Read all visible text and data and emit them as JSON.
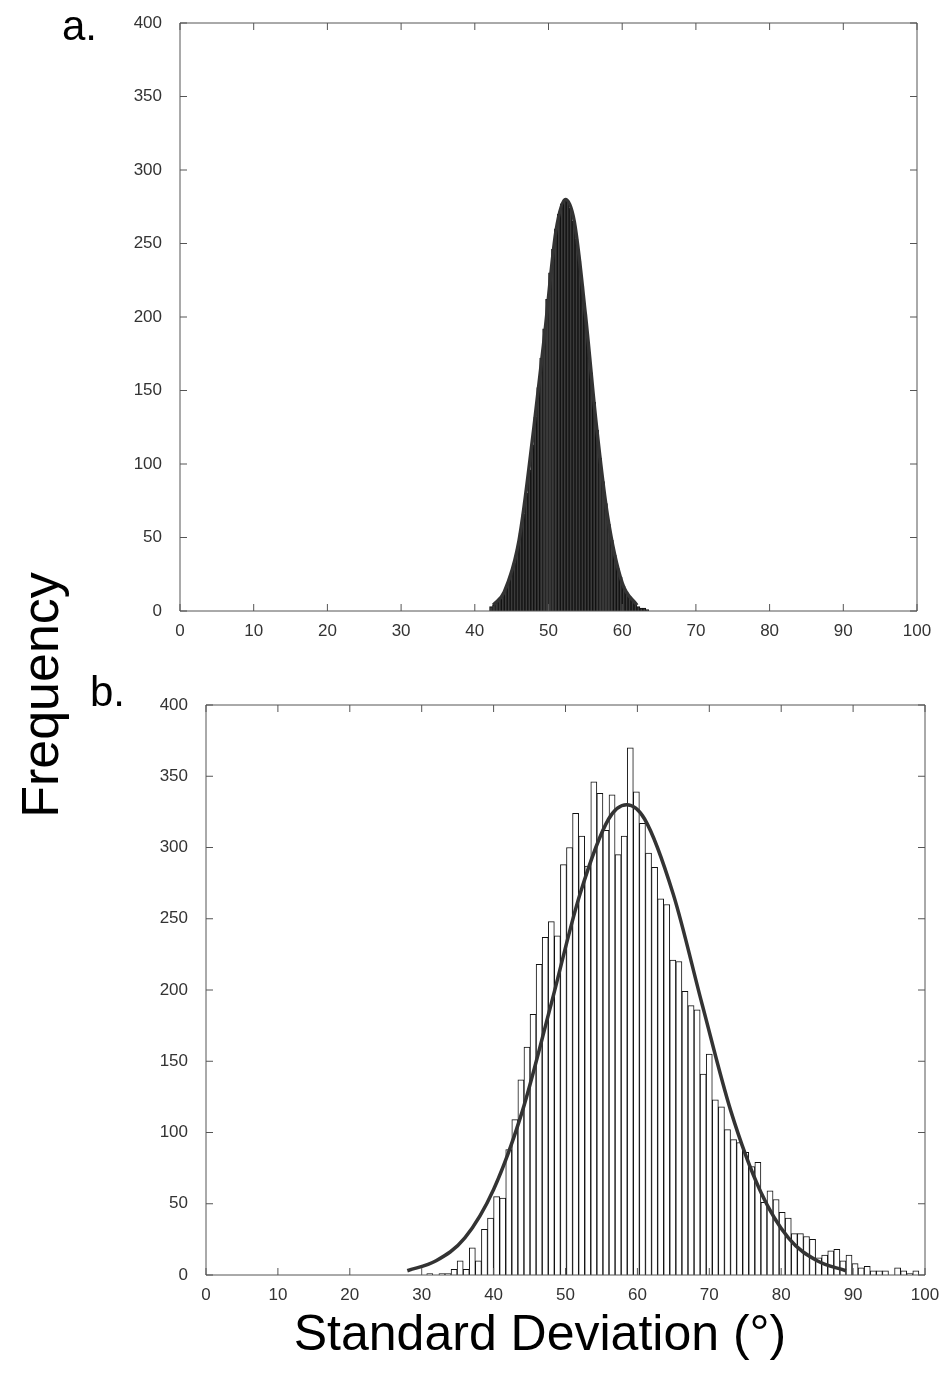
{
  "chart_data": [
    {
      "type": "histogram",
      "title": "a.",
      "ylabel": "Frequency",
      "color": "#3a3a3a",
      "bins": [
        42.0,
        42.4,
        42.8,
        43.2,
        43.6,
        44.0,
        44.4,
        44.8,
        45.2,
        45.6,
        46.0,
        46.4,
        46.8,
        47.2,
        47.6,
        48.0,
        48.4,
        48.8,
        49.2,
        49.6,
        50.0,
        50.4,
        50.8,
        51.2,
        51.6,
        52.0,
        52.4,
        52.8,
        53.2,
        53.6,
        54.0,
        54.4,
        54.8,
        55.2,
        55.6,
        56.0,
        56.4,
        56.8,
        57.2,
        57.6,
        58.0,
        58.4,
        58.8,
        59.2,
        59.6,
        60.0,
        60.4,
        60.8,
        61.2,
        61.6,
        62.0,
        62.4,
        62.8,
        63.2,
        63.6
      ],
      "values": [
        3,
        4,
        6,
        8,
        11,
        15,
        20,
        26,
        33,
        42,
        53,
        66,
        80,
        96,
        113,
        132,
        152,
        172,
        192,
        212,
        230,
        246,
        260,
        270,
        277,
        280,
        279,
        274,
        265,
        253,
        238,
        221,
        202,
        182,
        162,
        142,
        123,
        104,
        88,
        73,
        59,
        48,
        38,
        29,
        23,
        17,
        13,
        10,
        7,
        5,
        3,
        2,
        2,
        1
      ],
      "series": [
        {
          "type": "line",
          "color": "#333333",
          "x": [
            42.5,
            44,
            46,
            48,
            49.5,
            51,
            52.3,
            53.5,
            55,
            56.5,
            58,
            60,
            62
          ],
          "values": [
            4,
            13,
            48,
            124,
            189,
            258,
            280,
            265,
            202,
            126,
            65,
            19,
            4
          ]
        }
      ],
      "xlim": [
        0,
        100
      ],
      "ylim": [
        0,
        400
      ],
      "xticks": [
        0,
        10,
        20,
        30,
        40,
        50,
        60,
        70,
        80,
        90,
        100
      ],
      "yticks": [
        0,
        50,
        100,
        150,
        200,
        250,
        300,
        350,
        400
      ]
    },
    {
      "type": "histogram",
      "title": "b.",
      "xlabel": "Standard Deviation (°)",
      "color": "#ffffff",
      "bins": [
        30.7,
        31.55,
        32.39,
        33.24,
        34.08,
        34.93,
        35.77,
        36.62,
        37.46,
        38.31,
        39.15,
        40.0,
        40.84,
        41.69,
        42.53,
        43.38,
        44.22,
        45.07,
        45.91,
        46.76,
        47.6,
        48.45,
        49.29,
        50.14,
        50.98,
        51.83,
        52.67,
        53.52,
        54.36,
        55.21,
        56.05,
        56.9,
        57.74,
        58.59,
        59.43,
        60.28,
        61.12,
        61.97,
        62.81,
        63.66,
        64.5,
        65.35,
        66.19,
        67.04,
        67.88,
        68.73,
        69.57,
        70.42,
        71.26,
        72.11,
        72.95,
        73.8,
        74.64,
        75.49,
        76.33,
        77.18,
        78.02,
        78.87,
        79.71,
        80.56,
        81.4,
        82.25,
        83.09,
        83.94,
        84.78,
        85.63,
        86.47,
        87.32,
        88.16,
        89.01,
        89.85,
        90.7,
        91.54,
        92.39,
        93.23,
        94.08,
        94.92,
        95.77,
        96.61,
        97.46,
        98.3,
        99.15,
        99.99
      ],
      "values": [
        1,
        0,
        1,
        1,
        4,
        10,
        4,
        19,
        10,
        32,
        40,
        55,
        54,
        88,
        109,
        137,
        160,
        183,
        218,
        237,
        248,
        238,
        288,
        300,
        324,
        308,
        287,
        346,
        338,
        312,
        337,
        295,
        308,
        370,
        339,
        317,
        296,
        286,
        264,
        260,
        221,
        220,
        199,
        189,
        186,
        141,
        155,
        123,
        118,
        102,
        95,
        93,
        86,
        76,
        79,
        51,
        59,
        53,
        44,
        40,
        29,
        29,
        27,
        25,
        12,
        14,
        17,
        18,
        10,
        14,
        8,
        5,
        6,
        3,
        3,
        3,
        0,
        5,
        3,
        1,
        3,
        0
      ],
      "series": [
        {
          "type": "line",
          "color": "#333333",
          "x": [
            28,
            32,
            36,
            40,
            44,
            48,
            52,
            56,
            58.5,
            61,
            65,
            69,
            73,
            77,
            81,
            85,
            89
          ],
          "values": [
            3,
            10,
            26,
            60,
            115,
            190,
            267,
            320,
            330,
            320,
            267,
            190,
            115,
            60,
            26,
            10,
            3
          ]
        }
      ],
      "xlim": [
        0,
        100
      ],
      "ylim": [
        0,
        400
      ],
      "xticks": [
        0,
        10,
        20,
        30,
        40,
        50,
        60,
        70,
        80,
        90,
        100
      ],
      "yticks": [
        0,
        50,
        100,
        150,
        200,
        250,
        300,
        350,
        400
      ]
    }
  ]
}
